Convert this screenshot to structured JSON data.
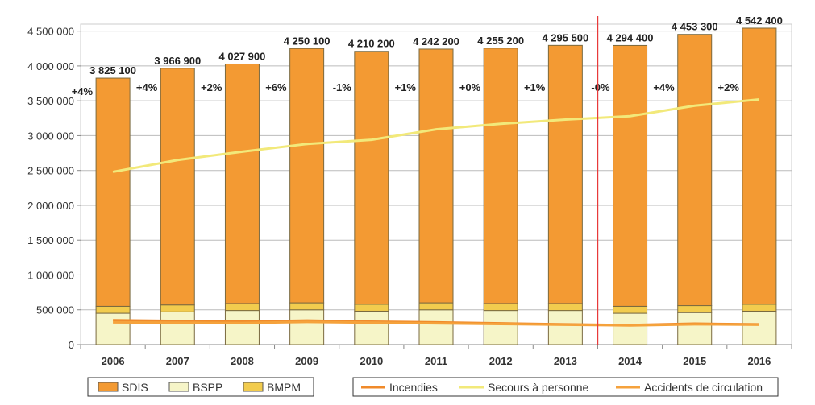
{
  "chart_data": {
    "type": "bar",
    "stacked": true,
    "categories": [
      "2006",
      "2007",
      "2008",
      "2009",
      "2010",
      "2011",
      "2012",
      "2013",
      "2014",
      "2015",
      "2016"
    ],
    "ylim": [
      0,
      4600000
    ],
    "yticks": [
      0,
      500000,
      1000000,
      1500000,
      2000000,
      2500000,
      3000000,
      3500000,
      4000000,
      4500000
    ],
    "ytick_labels": [
      "0",
      "500 000",
      "1 000 000",
      "1 500 000",
      "2 000 000",
      "2 500 000",
      "3 000 000",
      "3 500 000",
      "4 000 000",
      "4 500 000"
    ],
    "grid": true,
    "series": [
      {
        "name": "SDIS",
        "kind": "bar",
        "color": "#f39a33",
        "values": [
          3275100,
          3396900,
          3437900,
          3650100,
          3630200,
          3642200,
          3665200,
          3705500,
          3744400,
          3893300,
          3962400
        ]
      },
      {
        "name": "BSPP",
        "kind": "bar",
        "color": "#f6f5c8",
        "values": [
          450000,
          470000,
          490000,
          500000,
          480000,
          500000,
          490000,
          490000,
          450000,
          460000,
          480000
        ]
      },
      {
        "name": "BMPM",
        "kind": "bar",
        "color": "#f2cc4e",
        "values": [
          100000,
          100000,
          100000,
          100000,
          100000,
          100000,
          100000,
          100000,
          100000,
          100000,
          100000
        ]
      },
      {
        "name": "Incendies",
        "kind": "line",
        "color": "#f08a2a",
        "values": [
          350000,
          340000,
          330000,
          345000,
          330000,
          320000,
          305000,
          290000,
          280000,
          300000,
          290000
        ]
      },
      {
        "name": "Secours à personne",
        "kind": "line",
        "color": "#f2e97a",
        "values": [
          2480000,
          2650000,
          2770000,
          2880000,
          2940000,
          3090000,
          3170000,
          3230000,
          3280000,
          3430000,
          3520000
        ]
      },
      {
        "name": "Accidents de circulation",
        "kind": "line",
        "color": "#f5a23c",
        "values": [
          320000,
          315000,
          310000,
          325000,
          315000,
          305000,
          295000,
          285000,
          275000,
          290000,
          285000
        ]
      }
    ],
    "total_labels": [
      "3 825 100",
      "3 966 900",
      "4 027 900",
      "4 250 100",
      "4 210 200",
      "4 242 200",
      "4 255 200",
      "4 295 500",
      "4 294 400",
      "4 453 300",
      "4 542 400"
    ],
    "change_labels": [
      "+4%",
      "+4%",
      "+2%",
      "+6%",
      "-1%",
      "+1%",
      "+0%",
      "+1%",
      "-0%",
      "+4%",
      "+2%"
    ],
    "reference_line": {
      "between": [
        "2013",
        "2014"
      ],
      "color": "#e83a3a"
    },
    "legend_bars": [
      "SDIS",
      "BSPP",
      "BMPM"
    ],
    "legend_lines": [
      "Incendies",
      "Secours à personne",
      "Accidents de circulation"
    ],
    "legend_placement": "bottom"
  }
}
